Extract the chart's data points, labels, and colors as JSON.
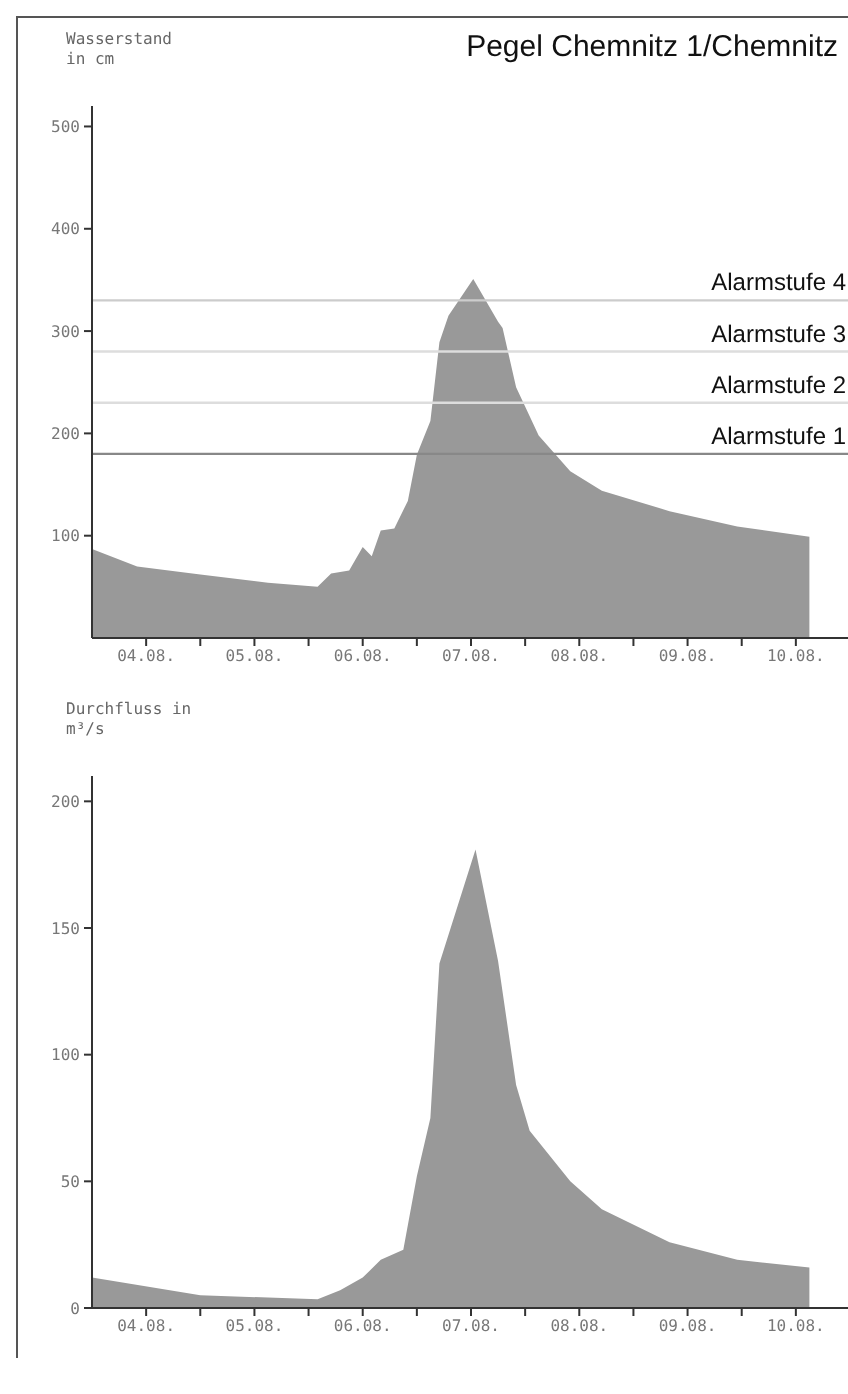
{
  "chart_data": [
    {
      "type": "area",
      "title": "Pegel Chemnitz 1/Chemnitz",
      "ylabel": "Wasserstand in cm",
      "color": "#999999",
      "x": [
        "--08-04T00:00",
        "--08-04T10:00",
        "--08-05T00:00",
        "--08-05T15:00",
        "--08-06T02:00",
        "--08-06T05:00",
        "--08-06T09:00",
        "--08-06T12:00",
        "--08-06T14:00",
        "--08-06T16:00",
        "--08-06T19:00",
        "--08-06T22:00",
        "--08-07T00:00",
        "--08-07T03:00",
        "--08-07T05:00",
        "--08-07T07:00",
        "--08-07T12:30",
        "--08-07T18:00",
        "--08-07T19:00",
        "--08-07T22:00",
        "--08-08T03:00",
        "--08-08T10:00",
        "--08-08T17:00",
        "--08-09T08:00",
        "--08-09T23:00",
        "--08-10T15:00"
      ],
      "values": [
        87,
        70,
        62,
        54,
        50,
        63,
        66,
        89,
        80,
        105,
        107,
        134,
        179,
        212,
        289,
        315,
        351,
        309,
        303,
        245,
        198,
        163,
        144,
        124,
        109,
        99
      ],
      "xlim": [
        "--08-04",
        "--08-11"
      ],
      "xticks": [
        {
          "value": "--08-04T12:00",
          "label": "04.08."
        },
        {
          "value": "--08-05",
          "label": null
        },
        {
          "value": "--08-05T12:00",
          "label": "05.08."
        },
        {
          "value": "--08-06",
          "label": null
        },
        {
          "value": "--08-06T12:00",
          "label": "06.08."
        },
        {
          "value": "--08-07",
          "label": null
        },
        {
          "value": "--08-07T12:00",
          "label": "07.08."
        },
        {
          "value": "--08-08",
          "label": null
        },
        {
          "value": "--08-08T12:00",
          "label": "08.08."
        },
        {
          "value": "--08-09",
          "label": null
        },
        {
          "value": "--08-09T12:00",
          "label": "09.08."
        },
        {
          "value": "--08-10",
          "label": null
        },
        {
          "value": "--08-10T12:00",
          "label": "10.08."
        },
        {
          "value": "--08-11",
          "label": null
        }
      ],
      "ylim": [
        0,
        520
      ],
      "yticks": [
        100,
        200,
        300,
        400,
        500
      ],
      "ref_lines": [
        {
          "axis": "y",
          "value": 330,
          "label": "Alarmstufe 4",
          "color": "#cccccc"
        },
        {
          "axis": "y",
          "value": 280,
          "label": "Alarmstufe 3",
          "color": "#dddddd"
        },
        {
          "axis": "y",
          "value": 230,
          "label": "Alarmstufe 2",
          "color": "#dddddd"
        },
        {
          "axis": "y",
          "value": 180,
          "label": "Alarmstufe 1",
          "color": "#888888"
        }
      ]
    },
    {
      "type": "area",
      "ylabel": "Durchfluss in m³/s",
      "color": "#999999",
      "x": [
        "--08-04T00:00",
        "--08-05T00:00",
        "--08-06T02:00",
        "--08-06T07:00",
        "--08-06T12:00",
        "--08-06T16:00",
        "--08-06T21:00",
        "--08-07T00:00",
        "--08-07T03:00",
        "--08-07T05:00",
        "--08-07T13:00",
        "--08-07T18:00",
        "--08-07T22:00",
        "--08-08T01:00",
        "--08-08T10:00",
        "--08-08T17:00",
        "--08-09T08:00",
        "--08-09T23:00",
        "--08-10T15:00"
      ],
      "values": [
        12,
        5,
        3.5,
        7,
        12,
        19,
        23,
        52,
        75,
        136,
        181,
        137,
        88,
        70,
        50,
        39,
        26,
        19,
        16
      ],
      "xlim": [
        "--08-04",
        "--08-11"
      ],
      "xticks": [
        {
          "value": "--08-04T12:00",
          "label": "04.08."
        },
        {
          "value": "--08-05",
          "label": null
        },
        {
          "value": "--08-05T12:00",
          "label": "05.08."
        },
        {
          "value": "--08-06",
          "label": null
        },
        {
          "value": "--08-06T12:00",
          "label": "06.08."
        },
        {
          "value": "--08-07",
          "label": null
        },
        {
          "value": "--08-07T12:00",
          "label": "07.08."
        },
        {
          "value": "--08-08",
          "label": null
        },
        {
          "value": "--08-08T12:00",
          "label": "08.08."
        },
        {
          "value": "--08-09",
          "label": null
        },
        {
          "value": "--08-09T12:00",
          "label": "09.08."
        },
        {
          "value": "--08-10",
          "label": null
        },
        {
          "value": "--08-10T12:00",
          "label": "10.08."
        },
        {
          "value": "--08-11",
          "label": null
        }
      ],
      "ylim": [
        0,
        210
      ],
      "yticks": [
        0,
        50,
        100,
        150,
        200
      ]
    }
  ]
}
